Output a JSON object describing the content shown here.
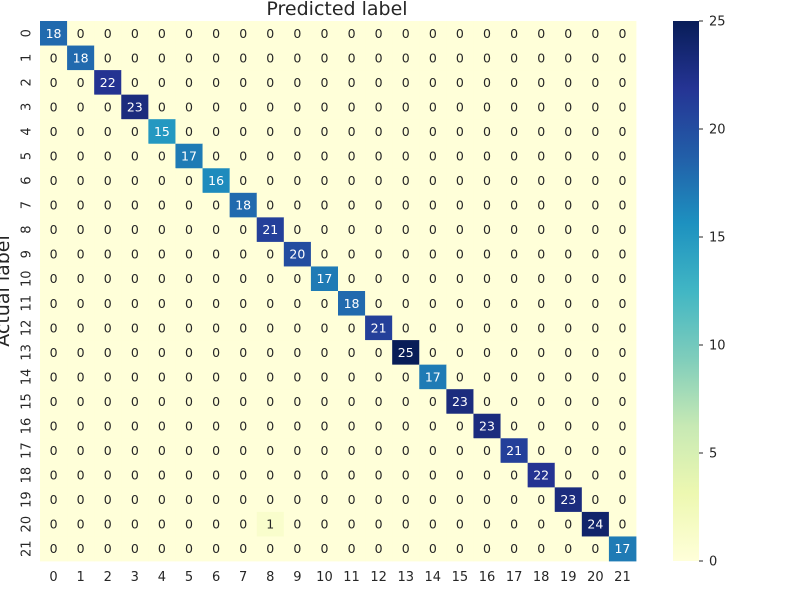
{
  "chart_data": {
    "type": "heatmap",
    "title": "Predicted label",
    "xlabel": "",
    "ylabel": "Actual label",
    "x_ticks": [
      "0",
      "1",
      "2",
      "3",
      "4",
      "5",
      "6",
      "7",
      "8",
      "9",
      "10",
      "11",
      "12",
      "13",
      "14",
      "15",
      "16",
      "17",
      "18",
      "19",
      "20",
      "21"
    ],
    "y_ticks": [
      "0",
      "1",
      "2",
      "3",
      "4",
      "5",
      "6",
      "7",
      "8",
      "9",
      "10",
      "11",
      "12",
      "13",
      "14",
      "15",
      "16",
      "17",
      "18",
      "19",
      "20",
      "21"
    ],
    "values": [
      [
        18,
        0,
        0,
        0,
        0,
        0,
        0,
        0,
        0,
        0,
        0,
        0,
        0,
        0,
        0,
        0,
        0,
        0,
        0,
        0,
        0,
        0
      ],
      [
        0,
        18,
        0,
        0,
        0,
        0,
        0,
        0,
        0,
        0,
        0,
        0,
        0,
        0,
        0,
        0,
        0,
        0,
        0,
        0,
        0,
        0
      ],
      [
        0,
        0,
        22,
        0,
        0,
        0,
        0,
        0,
        0,
        0,
        0,
        0,
        0,
        0,
        0,
        0,
        0,
        0,
        0,
        0,
        0,
        0
      ],
      [
        0,
        0,
        0,
        23,
        0,
        0,
        0,
        0,
        0,
        0,
        0,
        0,
        0,
        0,
        0,
        0,
        0,
        0,
        0,
        0,
        0,
        0
      ],
      [
        0,
        0,
        0,
        0,
        15,
        0,
        0,
        0,
        0,
        0,
        0,
        0,
        0,
        0,
        0,
        0,
        0,
        0,
        0,
        0,
        0,
        0
      ],
      [
        0,
        0,
        0,
        0,
        0,
        17,
        0,
        0,
        0,
        0,
        0,
        0,
        0,
        0,
        0,
        0,
        0,
        0,
        0,
        0,
        0,
        0
      ],
      [
        0,
        0,
        0,
        0,
        0,
        0,
        16,
        0,
        0,
        0,
        0,
        0,
        0,
        0,
        0,
        0,
        0,
        0,
        0,
        0,
        0,
        0
      ],
      [
        0,
        0,
        0,
        0,
        0,
        0,
        0,
        18,
        0,
        0,
        0,
        0,
        0,
        0,
        0,
        0,
        0,
        0,
        0,
        0,
        0,
        0
      ],
      [
        0,
        0,
        0,
        0,
        0,
        0,
        0,
        0,
        21,
        0,
        0,
        0,
        0,
        0,
        0,
        0,
        0,
        0,
        0,
        0,
        0,
        0
      ],
      [
        0,
        0,
        0,
        0,
        0,
        0,
        0,
        0,
        0,
        20,
        0,
        0,
        0,
        0,
        0,
        0,
        0,
        0,
        0,
        0,
        0,
        0
      ],
      [
        0,
        0,
        0,
        0,
        0,
        0,
        0,
        0,
        0,
        0,
        17,
        0,
        0,
        0,
        0,
        0,
        0,
        0,
        0,
        0,
        0,
        0
      ],
      [
        0,
        0,
        0,
        0,
        0,
        0,
        0,
        0,
        0,
        0,
        0,
        18,
        0,
        0,
        0,
        0,
        0,
        0,
        0,
        0,
        0,
        0
      ],
      [
        0,
        0,
        0,
        0,
        0,
        0,
        0,
        0,
        0,
        0,
        0,
        0,
        21,
        0,
        0,
        0,
        0,
        0,
        0,
        0,
        0,
        0
      ],
      [
        0,
        0,
        0,
        0,
        0,
        0,
        0,
        0,
        0,
        0,
        0,
        0,
        0,
        25,
        0,
        0,
        0,
        0,
        0,
        0,
        0,
        0
      ],
      [
        0,
        0,
        0,
        0,
        0,
        0,
        0,
        0,
        0,
        0,
        0,
        0,
        0,
        0,
        17,
        0,
        0,
        0,
        0,
        0,
        0,
        0
      ],
      [
        0,
        0,
        0,
        0,
        0,
        0,
        0,
        0,
        0,
        0,
        0,
        0,
        0,
        0,
        0,
        23,
        0,
        0,
        0,
        0,
        0,
        0
      ],
      [
        0,
        0,
        0,
        0,
        0,
        0,
        0,
        0,
        0,
        0,
        0,
        0,
        0,
        0,
        0,
        0,
        23,
        0,
        0,
        0,
        0,
        0
      ],
      [
        0,
        0,
        0,
        0,
        0,
        0,
        0,
        0,
        0,
        0,
        0,
        0,
        0,
        0,
        0,
        0,
        0,
        21,
        0,
        0,
        0,
        0
      ],
      [
        0,
        0,
        0,
        0,
        0,
        0,
        0,
        0,
        0,
        0,
        0,
        0,
        0,
        0,
        0,
        0,
        0,
        0,
        22,
        0,
        0,
        0
      ],
      [
        0,
        0,
        0,
        0,
        0,
        0,
        0,
        0,
        0,
        0,
        0,
        0,
        0,
        0,
        0,
        0,
        0,
        0,
        0,
        23,
        0,
        0
      ],
      [
        0,
        0,
        0,
        0,
        0,
        0,
        0,
        0,
        1,
        0,
        0,
        0,
        0,
        0,
        0,
        0,
        0,
        0,
        0,
        0,
        24,
        0
      ],
      [
        0,
        0,
        0,
        0,
        0,
        0,
        0,
        0,
        0,
        0,
        0,
        0,
        0,
        0,
        0,
        0,
        0,
        0,
        0,
        0,
        0,
        17
      ]
    ],
    "colorbar": {
      "min": 0,
      "max": 25,
      "ticks": [
        0,
        5,
        10,
        15,
        20,
        25
      ]
    },
    "colormap": "YlGnBu",
    "colormap_stops": [
      "#ffffd9",
      "#edf8b1",
      "#c7e9b4",
      "#7fcdbb",
      "#41b6c4",
      "#1d91c0",
      "#225ea8",
      "#253494",
      "#081d58"
    ],
    "annotations": "cell counts",
    "grid": false
  }
}
